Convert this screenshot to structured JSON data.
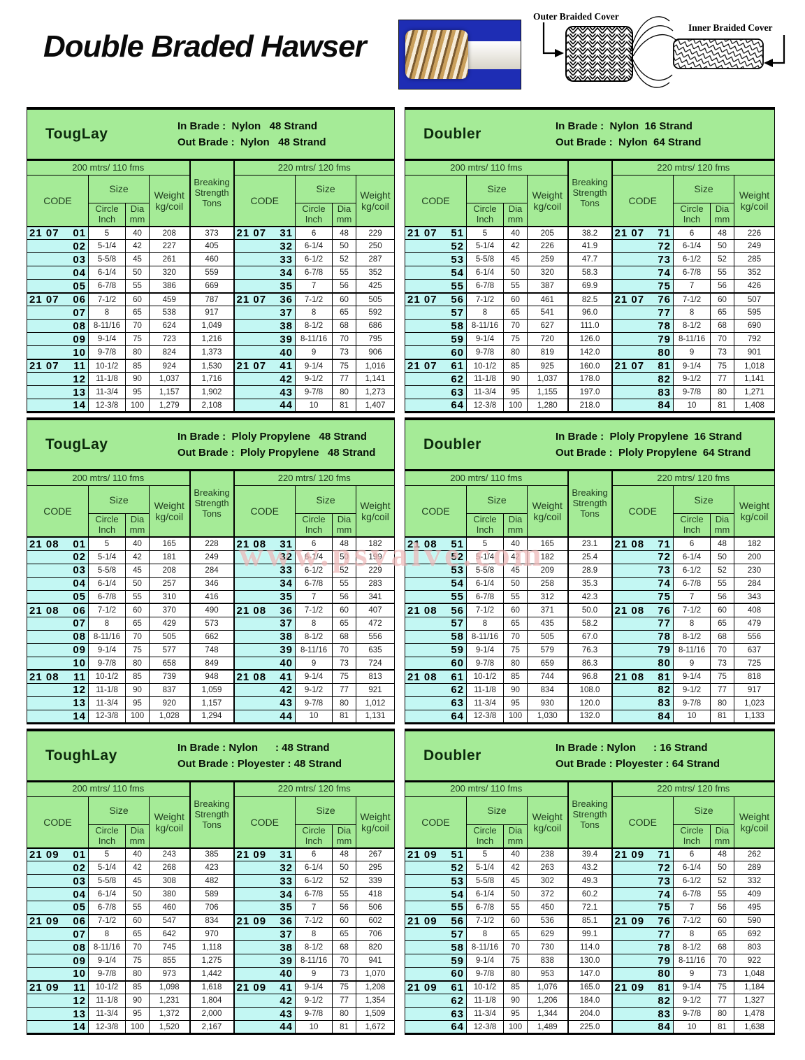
{
  "page": {
    "title": "Double Braded Hawser",
    "watermark": "www.psvalve.com"
  },
  "diagram": {
    "outer_label": "Outer Braided Cover",
    "inner_label": "Inner Braided Cover"
  },
  "table_headers": {
    "left_span": "200 mtrs/ 110 fms",
    "right_span": "220 mtrs/ 120 fms",
    "code": "CODE",
    "size": "Size",
    "circle": "Circle Inch",
    "dia": "Dia mm",
    "weight": "Weight kg/coil",
    "strength": "Breaking Strength Tons"
  },
  "tables": [
    {
      "title": "TougLay",
      "in_brade": "In Brade :  Nylon   48 Strand",
      "out_brade": "Out Brade :  Nylon   48 Strand",
      "code_prefix": "21 07",
      "rows": [
        [
          "01",
          "5",
          "40",
          "208",
          "373",
          "31",
          "6",
          "48",
          "229"
        ],
        [
          "02",
          "5-1/4",
          "42",
          "227",
          "405",
          "32",
          "6-1/4",
          "50",
          "250"
        ],
        [
          "03",
          "5-5/8",
          "45",
          "261",
          "460",
          "33",
          "6-1/2",
          "52",
          "287"
        ],
        [
          "04",
          "6-1/4",
          "50",
          "320",
          "559",
          "34",
          "6-7/8",
          "55",
          "352"
        ],
        [
          "05",
          "6-7/8",
          "55",
          "386",
          "669",
          "35",
          "7",
          "56",
          "425"
        ],
        [
          "06",
          "7-1/2",
          "60",
          "459",
          "787",
          "36",
          "7-1/2",
          "60",
          "505"
        ],
        [
          "07",
          "8",
          "65",
          "538",
          "917",
          "37",
          "8",
          "65",
          "592"
        ],
        [
          "08",
          "8-11/16",
          "70",
          "624",
          "1,049",
          "38",
          "8-1/2",
          "68",
          "686"
        ],
        [
          "09",
          "9-1/4",
          "75",
          "723",
          "1,216",
          "39",
          "8-11/16",
          "70",
          "795"
        ],
        [
          "10",
          "9-7/8",
          "80",
          "824",
          "1,373",
          "40",
          "9",
          "73",
          "906"
        ],
        [
          "11",
          "10-1/2",
          "85",
          "924",
          "1,530",
          "41",
          "9-1/4",
          "75",
          "1,016"
        ],
        [
          "12",
          "11-1/8",
          "90",
          "1,037",
          "1,716",
          "42",
          "9-1/2",
          "77",
          "1,141"
        ],
        [
          "13",
          "11-3/4",
          "95",
          "1,157",
          "1,902",
          "43",
          "9-7/8",
          "80",
          "1,273"
        ],
        [
          "14",
          "12-3/8",
          "100",
          "1,279",
          "2,108",
          "44",
          "10",
          "81",
          "1,407"
        ]
      ]
    },
    {
      "title": "Doubler",
      "in_brade": "In Brade :  Nylon  16 Strand",
      "out_brade": "Out Brade :  Nylon  64 Strand",
      "code_prefix": "21 07",
      "rows": [
        [
          "51",
          "5",
          "40",
          "205",
          "38.2",
          "71",
          "6",
          "48",
          "226"
        ],
        [
          "52",
          "5-1/4",
          "42",
          "226",
          "41.9",
          "72",
          "6-1/4",
          "50",
          "249"
        ],
        [
          "53",
          "5-5/8",
          "45",
          "259",
          "47.7",
          "73",
          "6-1/2",
          "52",
          "285"
        ],
        [
          "54",
          "6-1/4",
          "50",
          "320",
          "58.3",
          "74",
          "6-7/8",
          "55",
          "352"
        ],
        [
          "55",
          "6-7/8",
          "55",
          "387",
          "69.9",
          "75",
          "7",
          "56",
          "426"
        ],
        [
          "56",
          "7-1/2",
          "60",
          "461",
          "82.5",
          "76",
          "7-1/2",
          "60",
          "507"
        ],
        [
          "57",
          "8",
          "65",
          "541",
          "96.0",
          "77",
          "8",
          "65",
          "595"
        ],
        [
          "58",
          "8-11/16",
          "70",
          "627",
          "111.0",
          "78",
          "8-1/2",
          "68",
          "690"
        ],
        [
          "59",
          "9-1/4",
          "75",
          "720",
          "126.0",
          "79",
          "8-11/16",
          "70",
          "792"
        ],
        [
          "60",
          "9-7/8",
          "80",
          "819",
          "142.0",
          "80",
          "9",
          "73",
          "901"
        ],
        [
          "61",
          "10-1/2",
          "85",
          "925",
          "160.0",
          "81",
          "9-1/4",
          "75",
          "1,018"
        ],
        [
          "62",
          "11-1/8",
          "90",
          "1,037",
          "178.0",
          "82",
          "9-1/2",
          "77",
          "1,141"
        ],
        [
          "63",
          "11-3/4",
          "95",
          "1,155",
          "197.0",
          "83",
          "9-7/8",
          "80",
          "1,271"
        ],
        [
          "64",
          "12-3/8",
          "100",
          "1,280",
          "218.0",
          "84",
          "10",
          "81",
          "1,408"
        ]
      ]
    },
    {
      "title": "TougLay",
      "in_brade": "In Brade :  Ploly Propylene   48 Strand",
      "out_brade": "Out Brade :  Ploly Propylene   48 Strand",
      "code_prefix": "21 08",
      "rows": [
        [
          "01",
          "5",
          "40",
          "165",
          "228",
          "31",
          "6",
          "48",
          "182"
        ],
        [
          "02",
          "5-1/4",
          "42",
          "181",
          "249",
          "32",
          "6-1/4",
          "50",
          "199"
        ],
        [
          "03",
          "5-5/8",
          "45",
          "208",
          "284",
          "33",
          "6-1/2",
          "52",
          "229"
        ],
        [
          "04",
          "6-1/4",
          "50",
          "257",
          "346",
          "34",
          "6-7/8",
          "55",
          "283"
        ],
        [
          "05",
          "6-7/8",
          "55",
          "310",
          "416",
          "35",
          "7",
          "56",
          "341"
        ],
        [
          "06",
          "7-1/2",
          "60",
          "370",
          "490",
          "36",
          "7-1/2",
          "60",
          "407"
        ],
        [
          "07",
          "8",
          "65",
          "429",
          "573",
          "37",
          "8",
          "65",
          "472"
        ],
        [
          "08",
          "8-11/16",
          "70",
          "505",
          "662",
          "38",
          "8-1/2",
          "68",
          "556"
        ],
        [
          "09",
          "9-1/4",
          "75",
          "577",
          "748",
          "39",
          "8-11/16",
          "70",
          "635"
        ],
        [
          "10",
          "9-7/8",
          "80",
          "658",
          "849",
          "40",
          "9",
          "73",
          "724"
        ],
        [
          "11",
          "10-1/2",
          "85",
          "739",
          "948",
          "41",
          "9-1/4",
          "75",
          "813"
        ],
        [
          "12",
          "11-1/8",
          "90",
          "837",
          "1,059",
          "42",
          "9-1/2",
          "77",
          "921"
        ],
        [
          "13",
          "11-3/4",
          "95",
          "920",
          "1,157",
          "43",
          "9-7/8",
          "80",
          "1,012"
        ],
        [
          "14",
          "12-3/8",
          "100",
          "1,028",
          "1,294",
          "44",
          "10",
          "81",
          "1,131"
        ]
      ]
    },
    {
      "title": "Doubler",
      "in_brade": "In Brade :  Ploly Propylene  16 Strand",
      "out_brade": "Out Brade :  Ploly Propylene  64 Strand",
      "code_prefix": "21 08",
      "rows": [
        [
          "51",
          "5",
          "40",
          "165",
          "23.1",
          "71",
          "6",
          "48",
          "182"
        ],
        [
          "52",
          "5-1/4",
          "42",
          "182",
          "25.4",
          "72",
          "6-1/4",
          "50",
          "200"
        ],
        [
          "53",
          "5-5/8",
          "45",
          "209",
          "28.9",
          "73",
          "6-1/2",
          "52",
          "230"
        ],
        [
          "54",
          "6-1/4",
          "50",
          "258",
          "35.3",
          "74",
          "6-7/8",
          "55",
          "284"
        ],
        [
          "55",
          "6-7/8",
          "55",
          "312",
          "42.3",
          "75",
          "7",
          "56",
          "343"
        ],
        [
          "56",
          "7-1/2",
          "60",
          "371",
          "50.0",
          "76",
          "7-1/2",
          "60",
          "408"
        ],
        [
          "57",
          "8",
          "65",
          "435",
          "58.2",
          "77",
          "8",
          "65",
          "479"
        ],
        [
          "58",
          "8-11/16",
          "70",
          "505",
          "67.0",
          "78",
          "8-1/2",
          "68",
          "556"
        ],
        [
          "59",
          "9-1/4",
          "75",
          "579",
          "76.3",
          "79",
          "8-11/16",
          "70",
          "637"
        ],
        [
          "60",
          "9-7/8",
          "80",
          "659",
          "86.3",
          "80",
          "9",
          "73",
          "725"
        ],
        [
          "61",
          "10-1/2",
          "85",
          "744",
          "96.8",
          "81",
          "9-1/4",
          "75",
          "818"
        ],
        [
          "62",
          "11-1/8",
          "90",
          "834",
          "108.0",
          "82",
          "9-1/2",
          "77",
          "917"
        ],
        [
          "63",
          "11-3/4",
          "95",
          "930",
          "120.0",
          "83",
          "9-7/8",
          "80",
          "1,023"
        ],
        [
          "64",
          "12-3/8",
          "100",
          "1,030",
          "132.0",
          "84",
          "10",
          "81",
          "1,133"
        ]
      ]
    },
    {
      "title": "ToughLay",
      "in_brade": "In Brade : Nylon      : 48 Strand",
      "out_brade": "Out Brade : Ployester : 48 Strand",
      "code_prefix": "21 09",
      "rows": [
        [
          "01",
          "5",
          "40",
          "243",
          "385",
          "31",
          "6",
          "48",
          "267"
        ],
        [
          "02",
          "5-1/4",
          "42",
          "268",
          "423",
          "32",
          "6-1/4",
          "50",
          "295"
        ],
        [
          "03",
          "5-5/8",
          "45",
          "308",
          "482",
          "33",
          "6-1/2",
          "52",
          "339"
        ],
        [
          "04",
          "6-1/4",
          "50",
          "380",
          "589",
          "34",
          "6-7/8",
          "55",
          "418"
        ],
        [
          "05",
          "6-7/8",
          "55",
          "460",
          "706",
          "35",
          "7",
          "56",
          "506"
        ],
        [
          "06",
          "7-1/2",
          "60",
          "547",
          "834",
          "36",
          "7-1/2",
          "60",
          "602"
        ],
        [
          "07",
          "8",
          "65",
          "642",
          "970",
          "37",
          "8",
          "65",
          "706"
        ],
        [
          "08",
          "8-11/16",
          "70",
          "745",
          "1,118",
          "38",
          "8-1/2",
          "68",
          "820"
        ],
        [
          "09",
          "9-1/4",
          "75",
          "855",
          "1,275",
          "39",
          "8-11/16",
          "70",
          "941"
        ],
        [
          "10",
          "9-7/8",
          "80",
          "973",
          "1,442",
          "40",
          "9",
          "73",
          "1,070"
        ],
        [
          "11",
          "10-1/2",
          "85",
          "1,098",
          "1,618",
          "41",
          "9-1/4",
          "75",
          "1,208"
        ],
        [
          "12",
          "11-1/8",
          "90",
          "1,231",
          "1,804",
          "42",
          "9-1/2",
          "77",
          "1,354"
        ],
        [
          "13",
          "11-3/4",
          "95",
          "1,372",
          "2,000",
          "43",
          "9-7/8",
          "80",
          "1,509"
        ],
        [
          "14",
          "12-3/8",
          "100",
          "1,520",
          "2,167",
          "44",
          "10",
          "81",
          "1,672"
        ]
      ]
    },
    {
      "title": "Doubler",
      "in_brade": "In Brade : Nylon      : 16 Strand",
      "out_brade": "Out Brade : Ployester : 64 Strand",
      "code_prefix": "21 09",
      "rows": [
        [
          "51",
          "5",
          "40",
          "238",
          "39.4",
          "71",
          "6",
          "48",
          "262"
        ],
        [
          "52",
          "5-1/4",
          "42",
          "263",
          "43.2",
          "72",
          "6-1/4",
          "50",
          "289"
        ],
        [
          "53",
          "5-5/8",
          "45",
          "302",
          "49.3",
          "73",
          "6-1/2",
          "52",
          "332"
        ],
        [
          "54",
          "6-1/4",
          "50",
          "372",
          "60.2",
          "74",
          "6-7/8",
          "55",
          "409"
        ],
        [
          "55",
          "6-7/8",
          "55",
          "450",
          "72.1",
          "75",
          "7",
          "56",
          "495"
        ],
        [
          "56",
          "7-1/2",
          "60",
          "536",
          "85.1",
          "76",
          "7-1/2",
          "60",
          "590"
        ],
        [
          "57",
          "8",
          "65",
          "629",
          "99.1",
          "77",
          "8",
          "65",
          "692"
        ],
        [
          "58",
          "8-11/16",
          "70",
          "730",
          "114.0",
          "78",
          "8-1/2",
          "68",
          "803"
        ],
        [
          "59",
          "9-1/4",
          "75",
          "838",
          "130.0",
          "79",
          "8-11/16",
          "70",
          "922"
        ],
        [
          "60",
          "9-7/8",
          "80",
          "953",
          "147.0",
          "80",
          "9",
          "73",
          "1,048"
        ],
        [
          "61",
          "10-1/2",
          "85",
          "1,076",
          "165.0",
          "81",
          "9-1/4",
          "75",
          "1,184"
        ],
        [
          "62",
          "11-1/8",
          "90",
          "1,206",
          "184.0",
          "82",
          "9-1/2",
          "77",
          "1,327"
        ],
        [
          "63",
          "11-3/4",
          "95",
          "1,344",
          "204.0",
          "83",
          "9-7/8",
          "80",
          "1,478"
        ],
        [
          "64",
          "12-3/8",
          "100",
          "1,489",
          "225.0",
          "84",
          "10",
          "81",
          "1,638"
        ]
      ]
    }
  ]
}
